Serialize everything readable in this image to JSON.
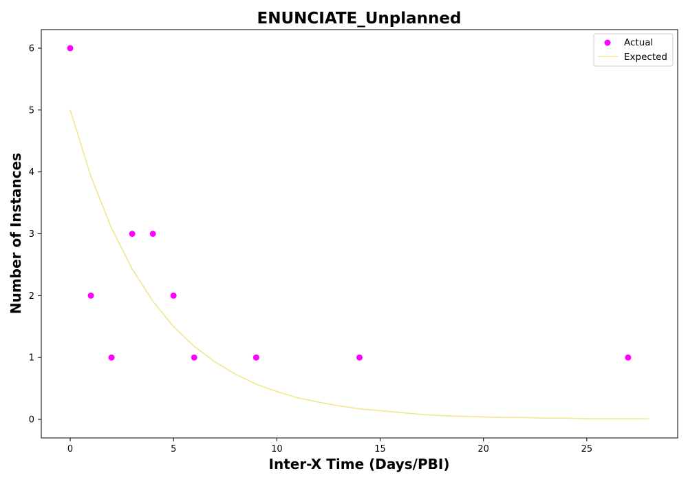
{
  "chart_data": {
    "type": "scatter",
    "title": "ENUNCIATE_Unplanned",
    "xlabel": "Inter-X Time (Days/PBI)",
    "ylabel": "Number of Instances",
    "xlim": [
      -1.4,
      29.4
    ],
    "ylim": [
      -0.3,
      6.3
    ],
    "xticks": [
      0,
      5,
      10,
      15,
      20,
      25
    ],
    "yticks": [
      0,
      1,
      2,
      3,
      4,
      5,
      6
    ],
    "grid": false,
    "legend_position": "top-right",
    "series": [
      {
        "name": "Actual",
        "kind": "scatter",
        "color": "#ff00ff",
        "x": [
          0,
          1,
          2,
          3,
          4,
          5,
          6,
          9,
          14,
          27
        ],
        "y": [
          6,
          2,
          1,
          3,
          3,
          2,
          1,
          1,
          1,
          1
        ]
      },
      {
        "name": "Expected",
        "kind": "line",
        "color": "#f0e68c",
        "x": [
          0,
          1,
          2,
          3,
          4,
          5,
          6,
          7,
          8,
          9,
          10,
          11,
          12,
          13,
          14,
          15,
          16,
          17,
          18,
          19,
          20,
          21,
          22,
          23,
          24,
          25,
          26,
          27,
          28
        ],
        "y": [
          5.0,
          3.93,
          3.09,
          2.43,
          1.91,
          1.5,
          1.18,
          0.93,
          0.73,
          0.57,
          0.45,
          0.35,
          0.28,
          0.22,
          0.17,
          0.14,
          0.11,
          0.08,
          0.06,
          0.05,
          0.04,
          0.03,
          0.03,
          0.02,
          0.02,
          0.01,
          0.01,
          0.01,
          0.01
        ]
      }
    ]
  }
}
